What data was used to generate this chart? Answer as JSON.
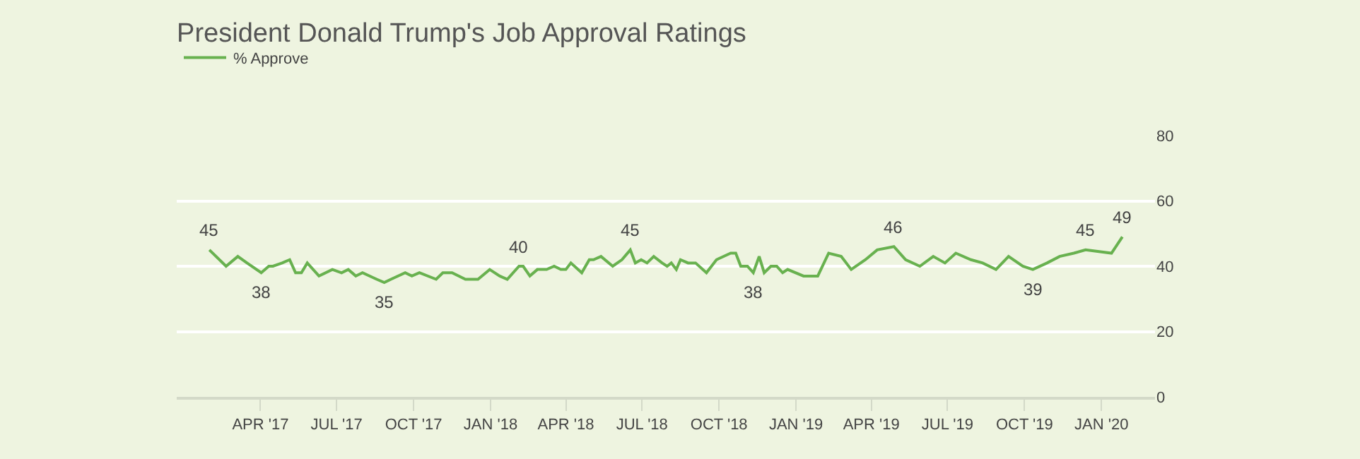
{
  "chart_data": {
    "type": "line",
    "title": "President Donald Trump's Job Approval Ratings",
    "x": [
      "2017-01-30",
      "2017-02-19",
      "2017-03-05",
      "2017-03-16",
      "2017-04-02",
      "2017-04-11",
      "2017-04-16",
      "2017-04-27",
      "2017-05-06",
      "2017-05-13",
      "2017-05-20",
      "2017-05-27",
      "2017-06-10",
      "2017-06-26",
      "2017-07-07",
      "2017-07-15",
      "2017-07-24",
      "2017-08-01",
      "2017-08-18",
      "2017-08-27",
      "2017-09-04",
      "2017-09-21",
      "2017-09-29",
      "2017-10-08",
      "2017-10-28",
      "2017-11-05",
      "2017-11-16",
      "2017-12-02",
      "2017-12-09",
      "2017-12-17",
      "2017-12-31",
      "2018-01-12",
      "2018-01-21",
      "2018-02-04",
      "2018-02-09",
      "2018-02-17",
      "2018-02-26",
      "2018-03-09",
      "2018-03-18",
      "2018-03-26",
      "2018-04-01",
      "2018-04-07",
      "2018-04-20",
      "2018-04-29",
      "2018-05-04",
      "2018-05-13",
      "2018-05-27",
      "2018-06-07",
      "2018-06-17",
      "2018-06-23",
      "2018-06-30",
      "2018-07-07",
      "2018-07-15",
      "2018-07-25",
      "2018-07-31",
      "2018-08-05",
      "2018-08-11",
      "2018-08-16",
      "2018-08-25",
      "2018-09-03",
      "2018-09-16",
      "2018-09-28",
      "2018-10-15",
      "2018-10-21",
      "2018-10-27",
      "2018-11-04",
      "2018-11-11",
      "2018-11-18",
      "2018-11-24",
      "2018-12-02",
      "2018-12-09",
      "2018-12-16",
      "2018-12-22",
      "2019-01-10",
      "2019-01-27",
      "2019-02-09",
      "2019-02-24",
      "2019-03-08",
      "2019-03-25",
      "2019-04-08",
      "2019-04-28",
      "2019-05-12",
      "2019-05-29",
      "2019-06-14",
      "2019-06-28",
      "2019-07-11",
      "2019-07-29",
      "2019-08-12",
      "2019-08-28",
      "2019-09-12",
      "2019-09-29",
      "2019-10-11",
      "2019-10-28",
      "2019-11-12",
      "2019-11-29",
      "2019-12-13",
      "2020-01-13",
      "2020-01-26"
    ],
    "series": [
      {
        "name": "% Approve",
        "color": "#68b14f",
        "values": [
          45,
          40,
          43,
          41,
          38,
          40,
          40,
          41,
          42,
          38,
          38,
          41,
          37,
          39,
          38,
          39,
          37,
          38,
          36,
          35,
          36,
          38,
          37,
          38,
          36,
          38,
          38,
          36,
          36,
          36,
          39,
          37,
          36,
          40,
          40,
          37,
          39,
          39,
          40,
          39,
          39,
          41,
          38,
          42,
          42,
          43,
          40,
          42,
          45,
          41,
          42,
          41,
          43,
          41,
          40,
          41,
          39,
          42,
          41,
          41,
          38,
          42,
          44,
          44,
          40,
          40,
          38,
          43,
          38,
          40,
          40,
          38,
          39,
          37,
          37,
          44,
          43,
          39,
          42,
          45,
          46,
          42,
          40,
          43,
          41,
          44,
          42,
          41,
          39,
          43,
          40,
          39,
          41,
          43,
          44,
          45,
          44,
          49
        ],
        "value_labels": [
          "45",
          null,
          null,
          null,
          "38",
          null,
          null,
          null,
          null,
          null,
          null,
          null,
          null,
          null,
          null,
          null,
          null,
          null,
          null,
          "35",
          null,
          null,
          null,
          null,
          null,
          null,
          null,
          null,
          null,
          null,
          null,
          null,
          null,
          "40",
          null,
          null,
          null,
          null,
          null,
          null,
          null,
          null,
          null,
          null,
          null,
          null,
          null,
          null,
          "45",
          null,
          null,
          null,
          null,
          null,
          null,
          null,
          null,
          null,
          null,
          null,
          null,
          null,
          null,
          null,
          null,
          null,
          "38",
          null,
          null,
          null,
          null,
          null,
          null,
          null,
          null,
          null,
          null,
          null,
          null,
          null,
          "46",
          null,
          null,
          null,
          null,
          null,
          null,
          null,
          null,
          null,
          null,
          "39",
          null,
          null,
          null,
          "45",
          null,
          "49"
        ]
      }
    ],
    "xlim": [
      "2016-12-22",
      "2020-03-05"
    ],
    "xticks": [
      {
        "value": "2017-04-01",
        "label": "APR '17"
      },
      {
        "value": "2017-07-01",
        "label": "JUL '17"
      },
      {
        "value": "2017-10-01",
        "label": "OCT '17"
      },
      {
        "value": "2018-01-01",
        "label": "JAN '18"
      },
      {
        "value": "2018-04-01",
        "label": "APR '18"
      },
      {
        "value": "2018-07-01",
        "label": "JUL '18"
      },
      {
        "value": "2018-10-01",
        "label": "OCT '18"
      },
      {
        "value": "2019-01-01",
        "label": "JAN '19"
      },
      {
        "value": "2019-04-01",
        "label": "APR '19"
      },
      {
        "value": "2019-07-01",
        "label": "JUL '19"
      },
      {
        "value": "2019-10-01",
        "label": "OCT '19"
      },
      {
        "value": "2020-01-01",
        "label": "JAN '20"
      }
    ],
    "ylim": [
      0,
      80
    ],
    "yticks": [
      0,
      20,
      40,
      60,
      80
    ],
    "grid": "y",
    "legend": "top left",
    "marker": "none",
    "line_style": "solid"
  }
}
